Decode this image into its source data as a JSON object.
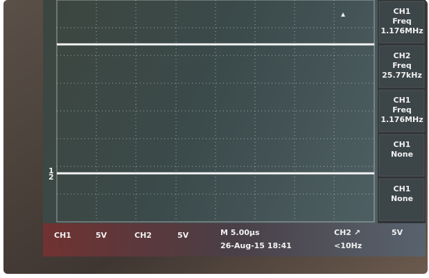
{
  "measurements": [
    {
      "source": "CH1",
      "type": "Freq",
      "value": "1.176MHz"
    },
    {
      "source": "CH2",
      "type": "Freq",
      "value": "25.77kHz"
    },
    {
      "source": "CH1",
      "type": "Freq",
      "value": "1.176MHz"
    },
    {
      "source": "CH1",
      "type": "None"
    },
    {
      "source": "CH1",
      "type": "None"
    }
  ],
  "status": {
    "ch1_label": "CH1",
    "ch1_scale": "5V",
    "ch2_label": "CH2",
    "ch2_scale": "5V",
    "timebase": "M 5.00µs",
    "date": "26-Aug-15 18:41",
    "trigger": "CH2 ↗",
    "trigger_level": "5V",
    "trigger_freq": "<10Hz"
  },
  "markers": {
    "ch1": "1",
    "ch2": "2"
  }
}
